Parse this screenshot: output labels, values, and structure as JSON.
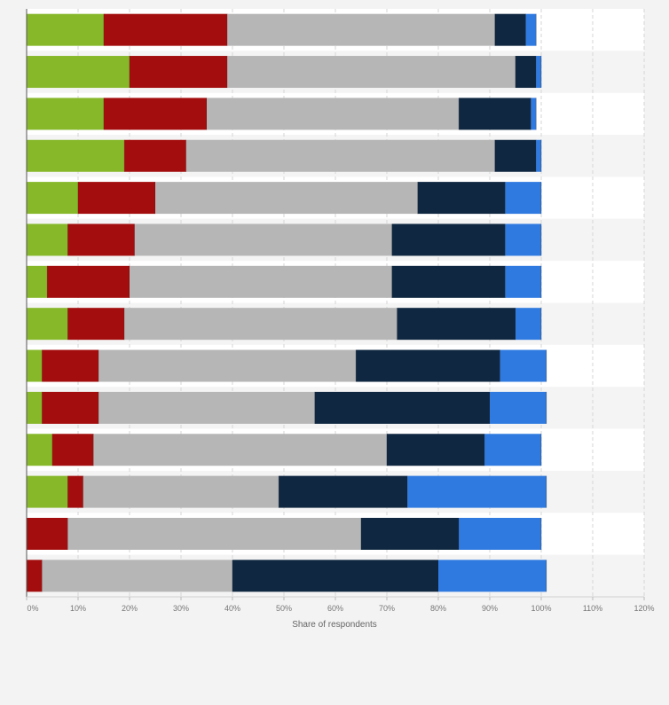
{
  "chart_data": {
    "type": "bar",
    "orientation": "horizontal",
    "stacked": true,
    "xlabel": "Share of respondents",
    "xlim": [
      0,
      120
    ],
    "x_ticks": [
      0,
      10,
      20,
      30,
      40,
      50,
      60,
      70,
      80,
      90,
      100,
      110,
      120
    ],
    "x_tick_labels": [
      "0%",
      "10%",
      "20%",
      "30%",
      "40%",
      "50%",
      "60%",
      "70%",
      "80%",
      "90%",
      "100%",
      "110%",
      "120%"
    ],
    "grid": true,
    "legend": "none",
    "row_count": 14,
    "series": [
      {
        "color": "#86b82a",
        "values": [
          15,
          20,
          15,
          19,
          10,
          8,
          4,
          8,
          3,
          3,
          5,
          8,
          0,
          0
        ]
      },
      {
        "color": "#a30d0d",
        "values": [
          24,
          19,
          20,
          12,
          15,
          13,
          16,
          11,
          11,
          11,
          8,
          3,
          8,
          3
        ]
      },
      {
        "color": "#b6b6b6",
        "values": [
          52,
          56,
          49,
          60,
          51,
          50,
          51,
          53,
          50,
          42,
          57,
          38,
          57,
          37
        ]
      },
      {
        "color": "#0f2740",
        "values": [
          6,
          4,
          14,
          8,
          17,
          22,
          22,
          23,
          28,
          34,
          19,
          25,
          19,
          40
        ]
      },
      {
        "color": "#2f7ae0",
        "values": [
          2,
          1,
          1,
          1,
          7,
          7,
          7,
          5,
          9,
          11,
          11,
          27,
          16,
          21
        ]
      }
    ]
  }
}
